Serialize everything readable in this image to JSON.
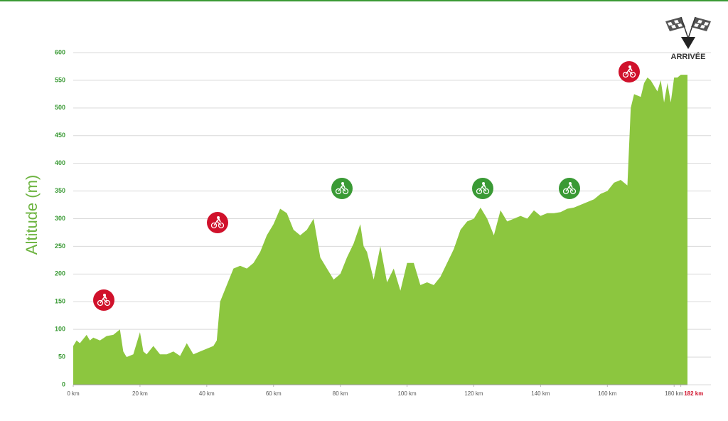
{
  "chart_data": {
    "type": "area",
    "y_label": "Altitude (m)",
    "annotation": "ARRIVÉE",
    "color": "#8cc63f",
    "grid": true,
    "xlim": [
      0,
      184
    ],
    "ylim": [
      0,
      600
    ],
    "yticks": [
      0,
      50,
      100,
      150,
      200,
      250,
      300,
      350,
      400,
      450,
      500,
      550,
      600
    ],
    "xticks": [
      {
        "value": 0,
        "label": "0 km"
      },
      {
        "value": 20,
        "label": "20 km"
      },
      {
        "value": 40,
        "label": "40 km"
      },
      {
        "value": 60,
        "label": "60 km"
      },
      {
        "value": 80,
        "label": "80 km"
      },
      {
        "value": 100,
        "label": "100 km"
      },
      {
        "value": 120,
        "label": "120 km"
      },
      {
        "value": 140,
        "label": "140 km"
      },
      {
        "value": 160,
        "label": "160 km"
      },
      {
        "value": 180,
        "label": "180 km"
      },
      {
        "value": 182,
        "label": "182 km"
      }
    ],
    "x": [
      0,
      1,
      2,
      4,
      5,
      6,
      8,
      10,
      12,
      14,
      15,
      16,
      18,
      20,
      21,
      22,
      24,
      26,
      28,
      30,
      32,
      34,
      36,
      38,
      40,
      42,
      43,
      44,
      46,
      48,
      50,
      52,
      54,
      56,
      58,
      60,
      62,
      64,
      66,
      68,
      70,
      72,
      74,
      76,
      78,
      80,
      82,
      84,
      86,
      87,
      88,
      90,
      92,
      94,
      96,
      98,
      100,
      102,
      104,
      106,
      108,
      110,
      112,
      114,
      116,
      118,
      120,
      122,
      124,
      126,
      128,
      130,
      132,
      134,
      136,
      138,
      140,
      142,
      144,
      146,
      148,
      150,
      152,
      154,
      156,
      158,
      160,
      162,
      164,
      166,
      167,
      168,
      170,
      171,
      172,
      173,
      175,
      176,
      177,
      178,
      179,
      180,
      181,
      182,
      183,
      184
    ],
    "values": [
      70,
      80,
      75,
      90,
      80,
      85,
      80,
      88,
      90,
      100,
      60,
      50,
      55,
      95,
      60,
      55,
      70,
      55,
      55,
      60,
      52,
      75,
      55,
      60,
      65,
      70,
      80,
      150,
      180,
      210,
      215,
      210,
      220,
      240,
      270,
      290,
      318,
      310,
      280,
      270,
      280,
      300,
      230,
      210,
      190,
      200,
      230,
      255,
      290,
      250,
      240,
      190,
      250,
      185,
      210,
      170,
      220,
      220,
      180,
      185,
      180,
      195,
      220,
      245,
      280,
      295,
      300,
      320,
      300,
      270,
      315,
      295,
      300,
      305,
      300,
      315,
      305,
      310,
      310,
      312,
      318,
      320,
      325,
      330,
      335,
      345,
      350,
      365,
      370,
      360,
      500,
      525,
      520,
      545,
      555,
      550,
      530,
      550,
      510,
      545,
      510,
      555,
      555,
      560,
      560,
      560
    ]
  }
}
